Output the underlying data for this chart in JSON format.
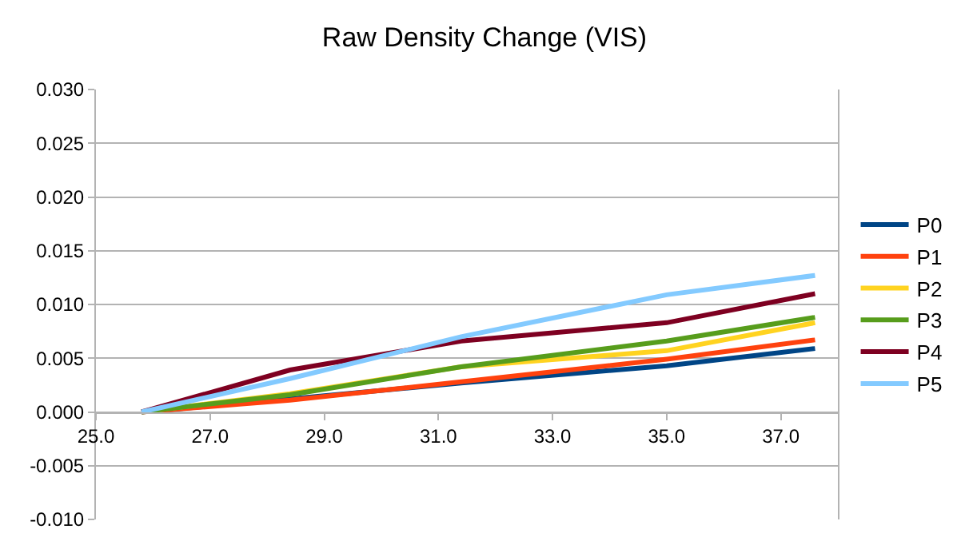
{
  "chart_data": {
    "type": "line",
    "title": "Raw Density Change (VIS)",
    "x": [
      25.8,
      28.4,
      31.4,
      35.0,
      37.6
    ],
    "series": [
      {
        "name": "P0",
        "color": "#004586",
        "values": [
          0,
          0.0012,
          0.0027,
          0.0043,
          0.0059
        ]
      },
      {
        "name": "P1",
        "color": "#ff420e",
        "values": [
          0,
          0.0011,
          0.0028,
          0.0049,
          0.0067
        ]
      },
      {
        "name": "P2",
        "color": "#ffd320",
        "values": [
          0,
          0.0017,
          0.0042,
          0.0057,
          0.0083
        ]
      },
      {
        "name": "P3",
        "color": "#579d1c",
        "values": [
          0,
          0.0016,
          0.0042,
          0.0066,
          0.0088
        ]
      },
      {
        "name": "P4",
        "color": "#7e0021",
        "values": [
          0,
          0.0039,
          0.0066,
          0.0083,
          0.011
        ]
      },
      {
        "name": "P5",
        "color": "#83caff",
        "values": [
          0,
          0.0031,
          0.007,
          0.0109,
          0.0127
        ]
      }
    ],
    "xlim": [
      25,
      38
    ],
    "xticks": [
      {
        "value": 25,
        "label": "25.0"
      },
      {
        "value": 27,
        "label": "27.0"
      },
      {
        "value": 29,
        "label": "29.0"
      },
      {
        "value": 31,
        "label": "31.0"
      },
      {
        "value": 33,
        "label": "33.0"
      },
      {
        "value": 35,
        "label": "35.0"
      },
      {
        "value": 37,
        "label": "37.0"
      }
    ],
    "ylim": [
      -0.01,
      0.03
    ],
    "yticks": [
      {
        "value": -0.01,
        "label": "-0.010"
      },
      {
        "value": -0.005,
        "label": "-0.005"
      },
      {
        "value": 0,
        "label": "0.000"
      },
      {
        "value": 0.005,
        "label": "0.005"
      },
      {
        "value": 0.01,
        "label": "0.010"
      },
      {
        "value": 0.015,
        "label": "0.015"
      },
      {
        "value": 0.02,
        "label": "0.020"
      },
      {
        "value": 0.025,
        "label": "0.025"
      },
      {
        "value": 0.03,
        "label": "0.030"
      }
    ],
    "grid": "y",
    "legend": "right",
    "marker": "none",
    "line_style": "solid"
  }
}
